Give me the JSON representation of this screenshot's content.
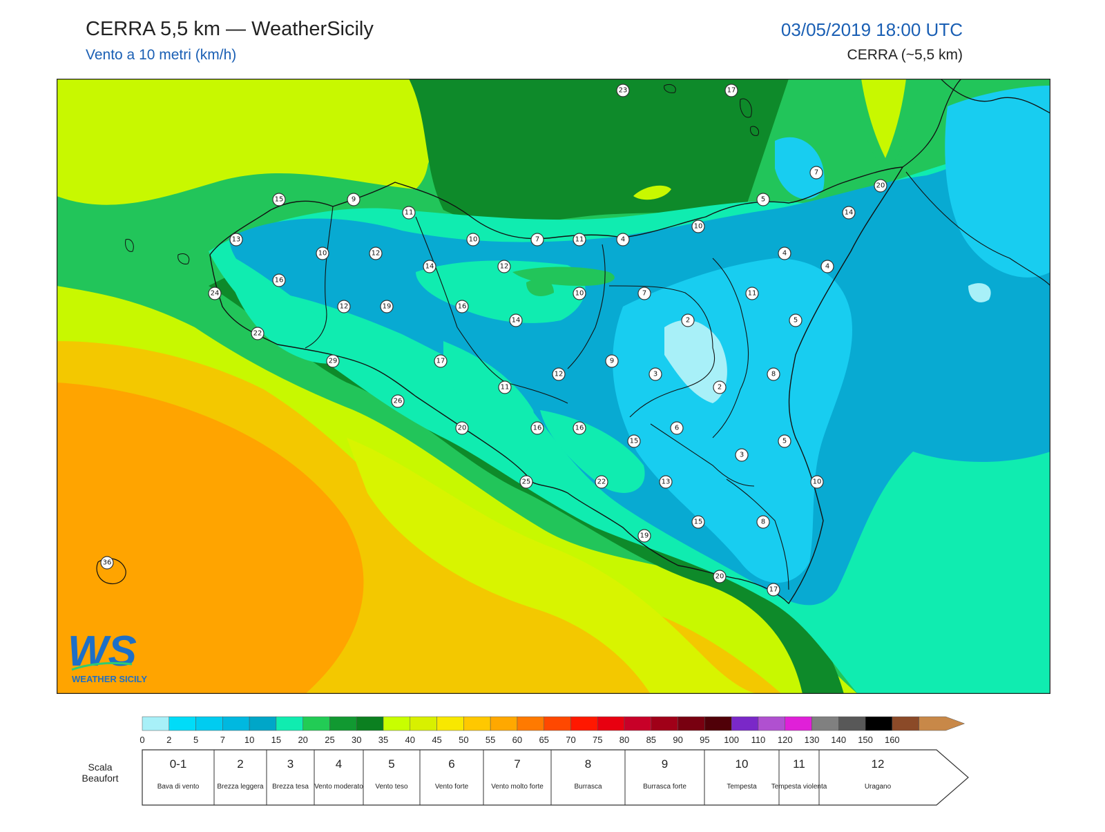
{
  "header": {
    "title": "CERRA 5,5 km — WeatherSicily",
    "subtitle": "Vento a 10 metri (km/h)",
    "datetime": "03/05/2019 18:00 UTC",
    "model": "CERRA (~5,5 km)"
  },
  "logo": {
    "text_main": "WS",
    "text_sub": "WEATHER SICILY"
  },
  "map": {
    "colors": {
      "sea_open": "#f3c800",
      "far_sw": "#ffa400",
      "yellow_green": "#c8f800",
      "lime": "#d8f400",
      "light_green": "#22c55a",
      "dark_green": "#0e8a2a",
      "aqua": "#10ecb0",
      "teal": "#08aad2",
      "cyan": "#18cdf0",
      "pale_cyan": "#a8f0f8",
      "mid_blue": "#0a9ac8"
    },
    "stations": [
      {
        "id": "s1",
        "value": "23"
      },
      {
        "id": "s2",
        "value": "17"
      },
      {
        "id": "s3",
        "value": "7"
      },
      {
        "id": "s4",
        "value": "20"
      },
      {
        "id": "s5",
        "value": "15"
      },
      {
        "id": "s6",
        "value": "9"
      },
      {
        "id": "s7",
        "value": "11"
      },
      {
        "id": "s8",
        "value": "5"
      },
      {
        "id": "s9",
        "value": "14"
      },
      {
        "id": "s10",
        "value": "13"
      },
      {
        "id": "s11",
        "value": "10"
      },
      {
        "id": "s12",
        "value": "7"
      },
      {
        "id": "s13",
        "value": "11"
      },
      {
        "id": "s14",
        "value": "4"
      },
      {
        "id": "s15",
        "value": "10"
      },
      {
        "id": "s16",
        "value": "10"
      },
      {
        "id": "s17",
        "value": "12"
      },
      {
        "id": "s18",
        "value": "14"
      },
      {
        "id": "s19",
        "value": "12"
      },
      {
        "id": "s20",
        "value": "4"
      },
      {
        "id": "s21",
        "value": "4"
      },
      {
        "id": "s22",
        "value": "16"
      },
      {
        "id": "s23",
        "value": "24"
      },
      {
        "id": "s24",
        "value": "12"
      },
      {
        "id": "s25",
        "value": "19"
      },
      {
        "id": "s26",
        "value": "16"
      },
      {
        "id": "s27",
        "value": "10"
      },
      {
        "id": "s28",
        "value": "7"
      },
      {
        "id": "s29",
        "value": "11"
      },
      {
        "id": "s30",
        "value": "2"
      },
      {
        "id": "s31",
        "value": "14"
      },
      {
        "id": "s32",
        "value": "5"
      },
      {
        "id": "s33",
        "value": "22"
      },
      {
        "id": "s34",
        "value": "29"
      },
      {
        "id": "s35",
        "value": "17"
      },
      {
        "id": "s36",
        "value": "12"
      },
      {
        "id": "s37",
        "value": "9"
      },
      {
        "id": "s38",
        "value": "3"
      },
      {
        "id": "s39",
        "value": "8"
      },
      {
        "id": "s40",
        "value": "11"
      },
      {
        "id": "s41",
        "value": "2"
      },
      {
        "id": "s42",
        "value": "26"
      },
      {
        "id": "s43",
        "value": "20"
      },
      {
        "id": "s44",
        "value": "16"
      },
      {
        "id": "s45",
        "value": "16"
      },
      {
        "id": "s46",
        "value": "15"
      },
      {
        "id": "s47",
        "value": "6"
      },
      {
        "id": "s48",
        "value": "5"
      },
      {
        "id": "s49",
        "value": "3"
      },
      {
        "id": "s50",
        "value": "25"
      },
      {
        "id": "s51",
        "value": "22"
      },
      {
        "id": "s52",
        "value": "13"
      },
      {
        "id": "s53",
        "value": "10"
      },
      {
        "id": "s54",
        "value": "15"
      },
      {
        "id": "s55",
        "value": "8"
      },
      {
        "id": "s56",
        "value": "19"
      },
      {
        "id": "s57",
        "value": "20"
      },
      {
        "id": "s58",
        "value": "17"
      },
      {
        "id": "s59",
        "value": "36"
      }
    ]
  },
  "legend": {
    "ticks": [
      "0",
      "2",
      "5",
      "7",
      "10",
      "15",
      "20",
      "25",
      "30",
      "35",
      "40",
      "45",
      "50",
      "55",
      "60",
      "65",
      "70",
      "75",
      "80",
      "85",
      "90",
      "95",
      "100",
      "110",
      "120",
      "130",
      "140",
      "150",
      "160"
    ],
    "colors": [
      "#a8f0f8",
      "#00dcf8",
      "#00ccf0",
      "#00b8e0",
      "#00a6c8",
      "#10ecb0",
      "#22cc55",
      "#119931",
      "#0b8020",
      "#c8ff00",
      "#d8f000",
      "#f8e800",
      "#ffc800",
      "#ffa800",
      "#ff7a00",
      "#ff4800",
      "#ff1800",
      "#e80010",
      "#c80028",
      "#a00018",
      "#780010",
      "#500008",
      "#7a28c8",
      "#b050d0",
      "#e020d8",
      "#808080",
      "#585858",
      "#000000",
      "#8b4a28",
      "#c88848"
    ],
    "beaufort_label": "Scala Beaufort",
    "beaufort": [
      {
        "num": "0-1",
        "desc": "Bava di vento"
      },
      {
        "num": "2",
        "desc": "Brezza leggera"
      },
      {
        "num": "3",
        "desc": "Brezza tesa"
      },
      {
        "num": "4",
        "desc": "Vento moderato"
      },
      {
        "num": "5",
        "desc": "Vento teso"
      },
      {
        "num": "6",
        "desc": "Vento forte"
      },
      {
        "num": "7",
        "desc": "Vento molto forte"
      },
      {
        "num": "8",
        "desc": "Burrasca"
      },
      {
        "num": "9",
        "desc": "Burrasca forte"
      },
      {
        "num": "10",
        "desc": "Tempesta"
      },
      {
        "num": "11",
        "desc": "Tempesta violenta"
      },
      {
        "num": "12",
        "desc": "Uragano"
      }
    ]
  }
}
